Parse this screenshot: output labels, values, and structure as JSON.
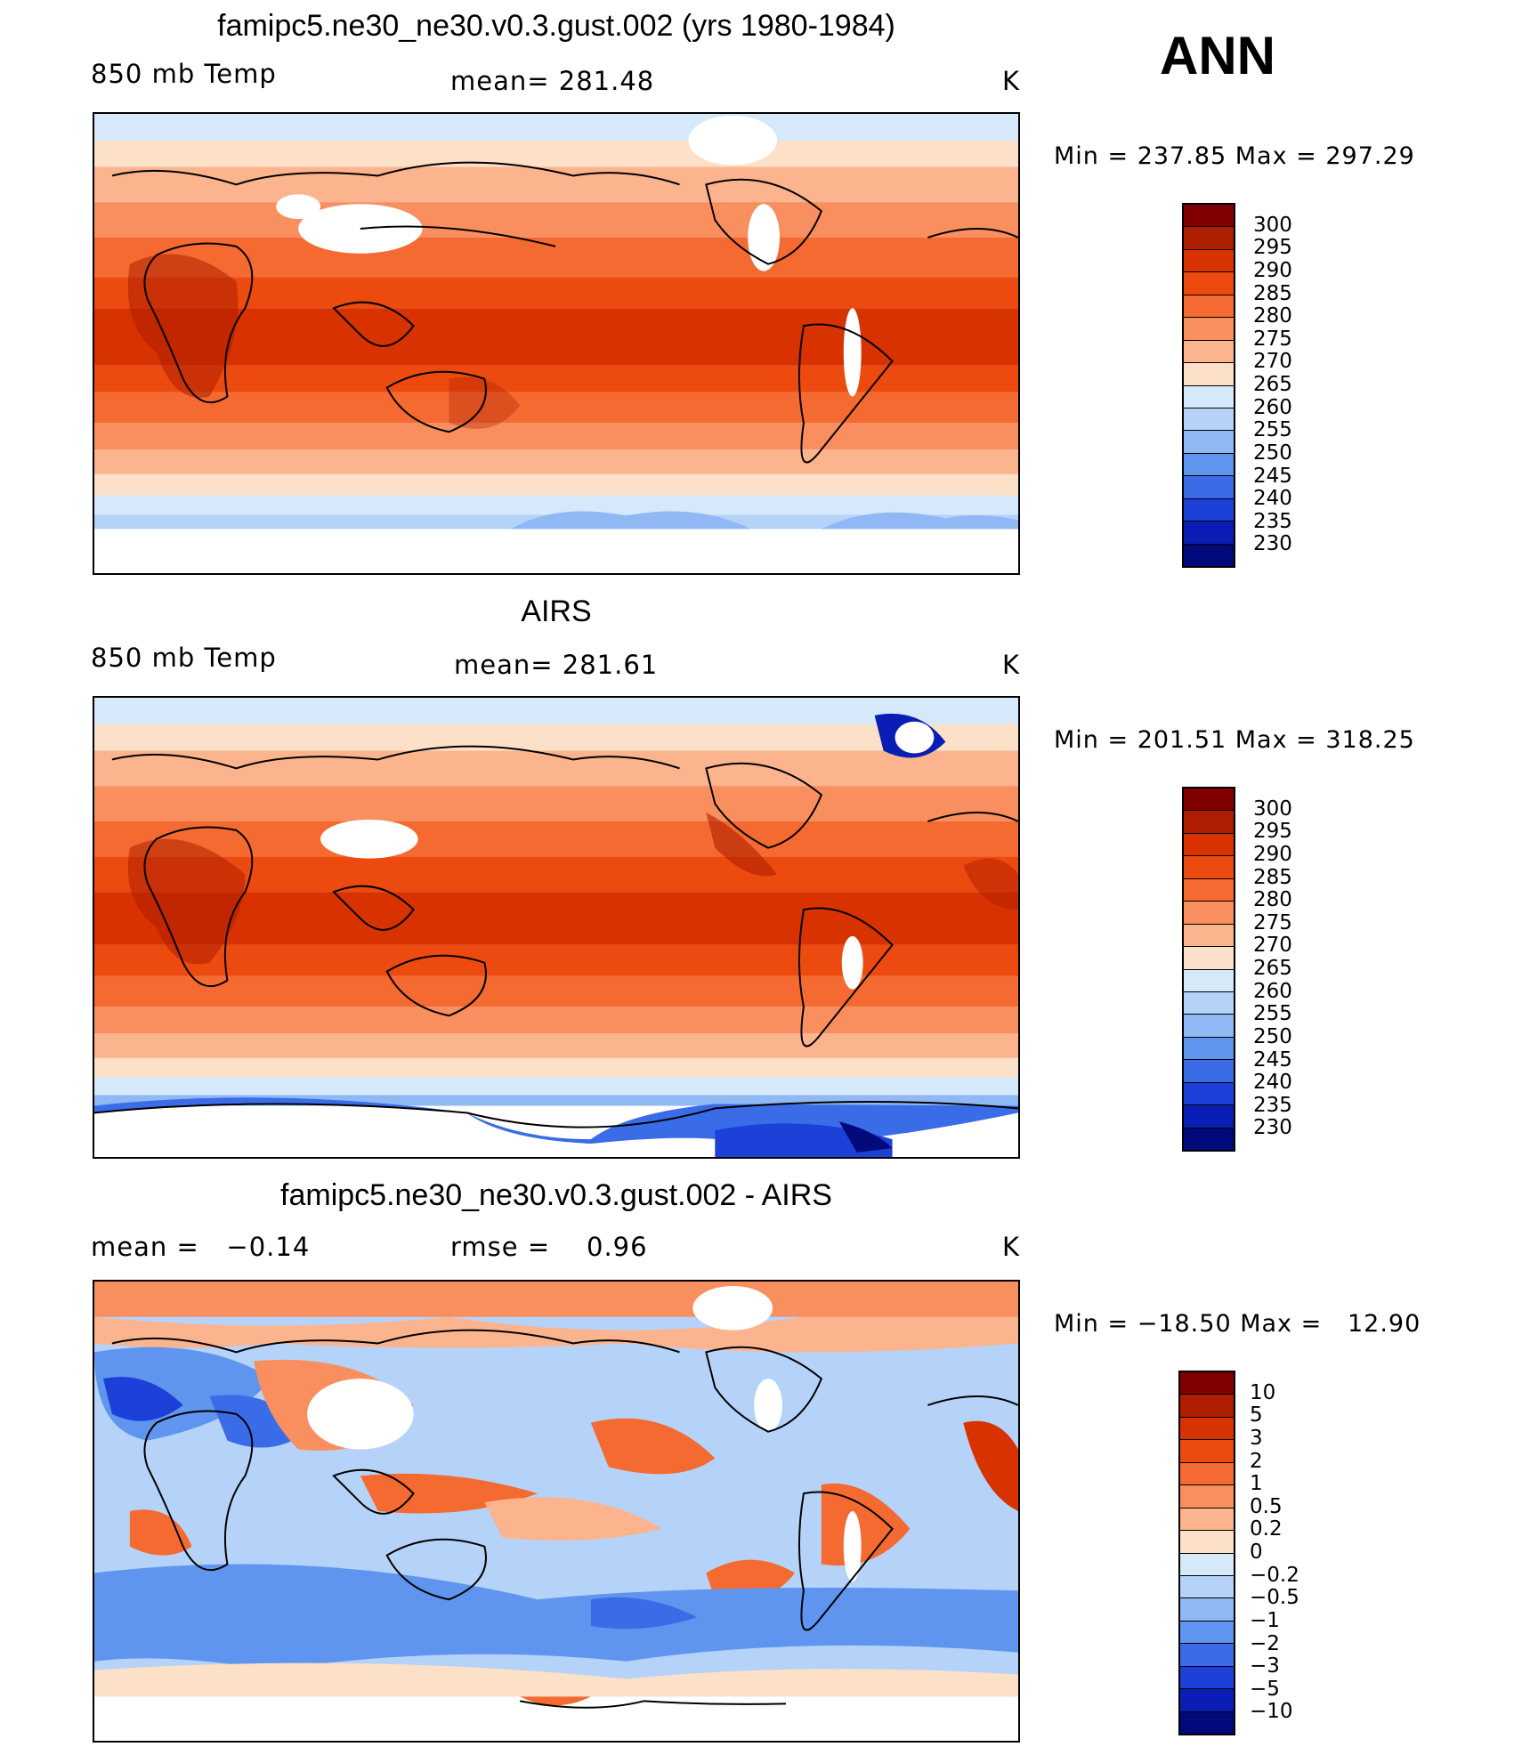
{
  "season": "ANN",
  "panels": [
    {
      "title": "famipc5.ne30_ne30.v0.3.gust.002 (yrs 1980-1984)",
      "left_label": "850 mb Temp",
      "center_label": "mean= 281.48",
      "units": "K",
      "minmax": "Min = 237.85 Max = 297.29",
      "colorbar_labels": [
        "300",
        "295",
        "290",
        "285",
        "280",
        "275",
        "270",
        "265",
        "260",
        "255",
        "250",
        "245",
        "240",
        "235",
        "230"
      ],
      "colorbar_colors": [
        "#800000",
        "#b01e00",
        "#d83200",
        "#ec4a0e",
        "#f46a30",
        "#f98e5e",
        "#fbb48e",
        "#fde0c8",
        "#d6e9fb",
        "#b5d3f8",
        "#8fb8f4",
        "#5f95ee",
        "#3a6ce8",
        "#1c40d8",
        "#0a1eb6",
        "#000a7a"
      ]
    },
    {
      "title": "AIRS",
      "left_label": "850 mb Temp",
      "center_label": "mean= 281.61",
      "units": "K",
      "minmax": "Min = 201.51 Max = 318.25",
      "colorbar_labels": [
        "300",
        "295",
        "290",
        "285",
        "280",
        "275",
        "270",
        "265",
        "260",
        "255",
        "250",
        "245",
        "240",
        "235",
        "230"
      ],
      "colorbar_colors": [
        "#800000",
        "#b01e00",
        "#d83200",
        "#ec4a0e",
        "#f46a30",
        "#f98e5e",
        "#fbb48e",
        "#fde0c8",
        "#d6e9fb",
        "#b5d3f8",
        "#8fb8f4",
        "#5f95ee",
        "#3a6ce8",
        "#1c40d8",
        "#0a1eb6",
        "#000a7a"
      ]
    },
    {
      "title": "famipc5.ne30_ne30.v0.3.gust.002 - AIRS",
      "left_label": "mean =   −0.14",
      "center_label": "rmse =    0.96",
      "units": "K",
      "minmax": "Min = −18.50 Max =   12.90",
      "colorbar_labels": [
        "10",
        "5",
        "3",
        "2",
        "1",
        "0.5",
        "0.2",
        "0",
        "−0.2",
        "−0.5",
        "−1",
        "−2",
        "−3",
        "−5",
        "−10"
      ],
      "colorbar_colors": [
        "#800000",
        "#b01e00",
        "#d83200",
        "#ec4a0e",
        "#f46a30",
        "#f98e5e",
        "#fbb48e",
        "#fde0c8",
        "#d6e9fb",
        "#b5d3f8",
        "#8fb8f4",
        "#5f95ee",
        "#3a6ce8",
        "#1c40d8",
        "#0a1eb6",
        "#000a7a"
      ]
    }
  ]
}
